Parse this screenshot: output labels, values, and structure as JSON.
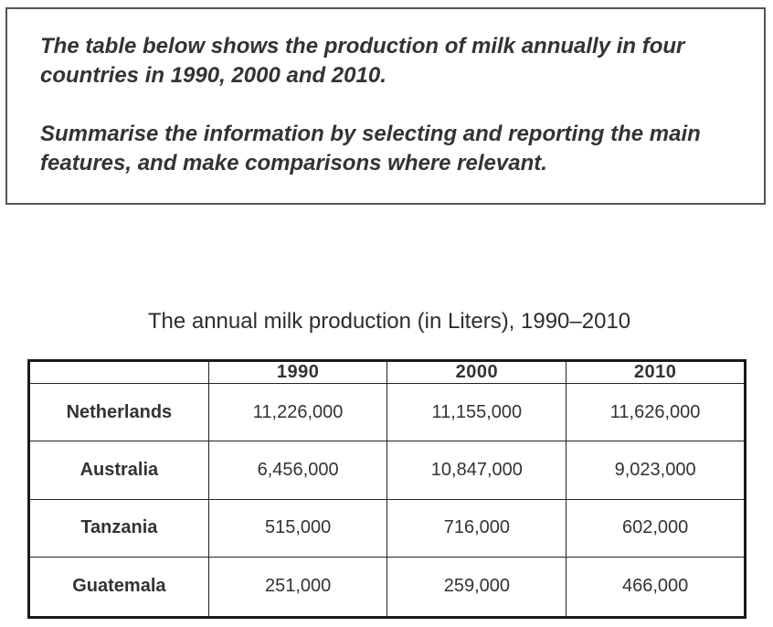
{
  "prompt": {
    "paragraph1": "The table below shows the production of milk annually in four countries in 1990, 2000 and 2010.",
    "paragraph2": "Summarise the information by selecting and reporting the main features, and make comparisons where relevant."
  },
  "chart_data": {
    "type": "table",
    "title": "The annual milk production (in Liters), 1990–2010",
    "columns": [
      "",
      "1990",
      "2000",
      "2010"
    ],
    "rows": [
      {
        "country": "Netherlands",
        "values": [
          "11,226,000",
          "11,155,000",
          "11,626,000"
        ]
      },
      {
        "country": "Australia",
        "values": [
          "6,456,000",
          "10,847,000",
          "9,023,000"
        ]
      },
      {
        "country": "Tanzania",
        "values": [
          "515,000",
          "716,000",
          "602,000"
        ]
      },
      {
        "country": "Guatemala",
        "values": [
          "251,000",
          "259,000",
          "466,000"
        ]
      }
    ]
  }
}
